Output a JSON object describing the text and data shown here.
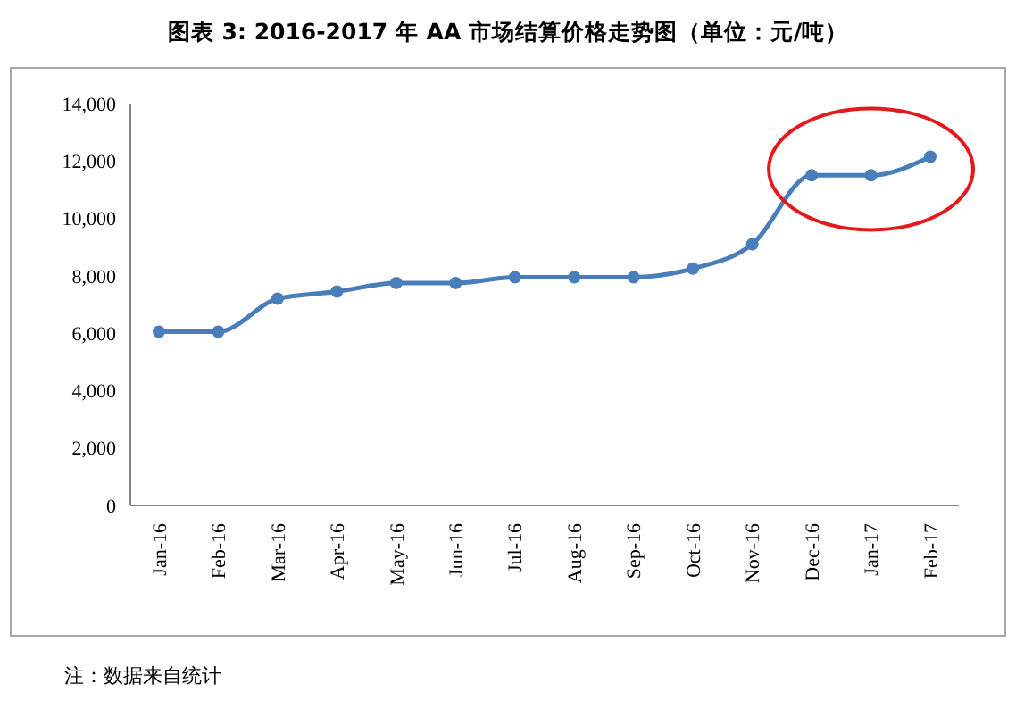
{
  "chart_data": {
    "type": "line",
    "title": "图表 3: 2016-2017 年 AA 市场结算价格走势图（单位：元/吨）",
    "categories": [
      "Jan-16",
      "Feb-16",
      "Mar-16",
      "Apr-16",
      "May-16",
      "Jun-16",
      "Jul-16",
      "Aug-16",
      "Sep-16",
      "Oct-16",
      "Nov-16",
      "Dec-16",
      "Jan-17",
      "Feb-17"
    ],
    "series": [
      {
        "color": "#4a7ebb",
        "values": [
          6050,
          6050,
          7200,
          7450,
          7750,
          7750,
          7950,
          7950,
          7950,
          8250,
          9100,
          11500,
          11500,
          12150
        ]
      }
    ],
    "ylim": [
      0,
      14000
    ],
    "yticks": [
      {
        "value": 0,
        "label": "0"
      },
      {
        "value": 2000,
        "label": "2,000"
      },
      {
        "value": 4000,
        "label": "4,000"
      },
      {
        "value": 6000,
        "label": "6,000"
      },
      {
        "value": 8000,
        "label": "8,000"
      },
      {
        "value": 10000,
        "label": "10,000"
      },
      {
        "value": 12000,
        "label": "12,000"
      },
      {
        "value": 14000,
        "label": "14,000"
      }
    ],
    "marker": "circle",
    "line_style": "solid",
    "annotations": [
      "注：数据来自统计"
    ]
  }
}
